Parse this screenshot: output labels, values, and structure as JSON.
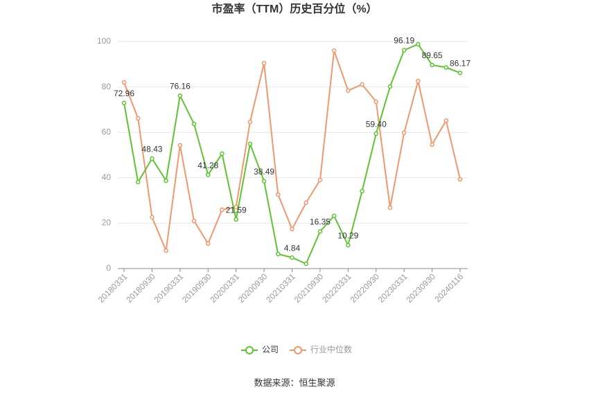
{
  "chart_data": {
    "type": "line",
    "title": "市盈率（TTM）历史百分位（%）",
    "source": "数据来源：恒生聚源",
    "categories": [
      "20180331",
      null,
      "20180930",
      null,
      "20190331",
      null,
      "20190930",
      null,
      "20200331",
      null,
      "20200930",
      null,
      "20210331",
      null,
      "20210930",
      null,
      "20220331",
      null,
      "20220930",
      null,
      "20230331",
      null,
      "20230930",
      null,
      "20240116"
    ],
    "series": [
      {
        "name": "公司",
        "color": "#5cc42f",
        "values": [
          72.96,
          38.1,
          48.43,
          38.7,
          76.16,
          63.7,
          41.28,
          50.6,
          21.59,
          54.9,
          38.49,
          6.4,
          4.84,
          2.1,
          16.35,
          23.2,
          10.29,
          34.1,
          59.4,
          80.2,
          96.19,
          98.8,
          89.65,
          88.6,
          86.17
        ],
        "value_labels": [
          "72.96",
          null,
          "48.43",
          null,
          "76.16",
          null,
          "41.28",
          null,
          "21.59",
          null,
          "38.49",
          null,
          "4.84",
          null,
          "16.35",
          null,
          "10.29",
          null,
          "59.40",
          null,
          "96.19",
          null,
          "89.65",
          null,
          "86.17"
        ]
      },
      {
        "name": "行业中位数",
        "color": "#f2966b",
        "values": [
          82,
          66.2,
          22.6,
          7.9,
          54.3,
          21,
          11,
          25.9,
          27.1,
          64.6,
          90.5,
          32.6,
          17.4,
          29,
          39,
          96,
          78.4,
          81.1,
          73.5,
          26.8,
          59.8,
          82.6,
          54.6,
          65.2,
          39.3
        ]
      }
    ],
    "ylim": [
      0,
      100
    ],
    "yticks": [
      0,
      20,
      40,
      60,
      80,
      100
    ],
    "grid": true,
    "legend": "bottom"
  }
}
